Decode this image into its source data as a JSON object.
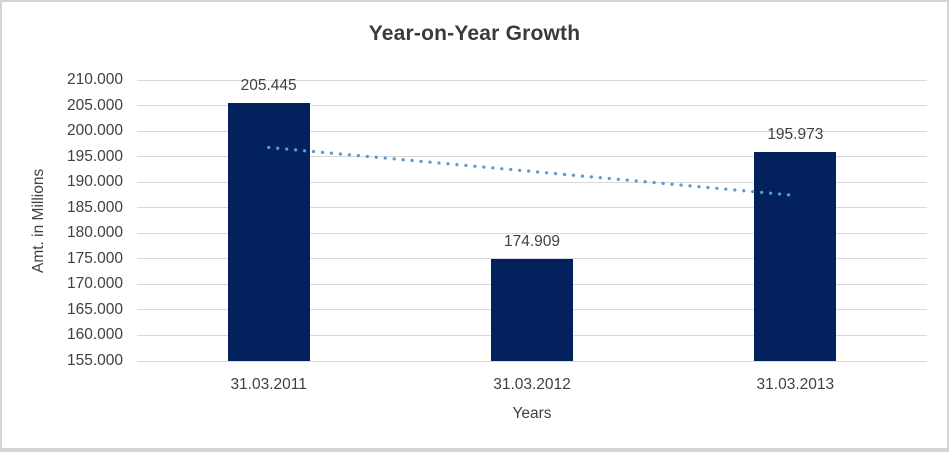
{
  "chart_data": {
    "type": "bar",
    "title": "Year-on-Year Growth",
    "xlabel": "Years",
    "ylabel": "Amt. in Millions",
    "categories": [
      "31.03.2011",
      "31.03.2012",
      "31.03.2013"
    ],
    "values": [
      205.445,
      174.909,
      195.973
    ],
    "value_labels": [
      "205.445",
      "174.909",
      "195.973"
    ],
    "ylim": [
      155.0,
      210.0
    ],
    "ytick_step": 5.0,
    "ytick_labels": [
      "210.000",
      "205.000",
      "200.000",
      "195.000",
      "190.000",
      "185.000",
      "180.000",
      "175.000",
      "170.000",
      "165.000",
      "160.000",
      "155.000"
    ],
    "grid": true,
    "legend": false,
    "trendline": {
      "type": "linear",
      "style": "dotted",
      "start_value": 196.8,
      "end_value": 187.4
    },
    "colors": {
      "bar_fill": "#03215d",
      "trendline": "#5b9bd5",
      "gridline": "#d9d9d9",
      "axis_text": "#404040",
      "title_text": "#3a3a3a",
      "frame_border": "#d4d4d4",
      "background": "#ffffff"
    }
  }
}
